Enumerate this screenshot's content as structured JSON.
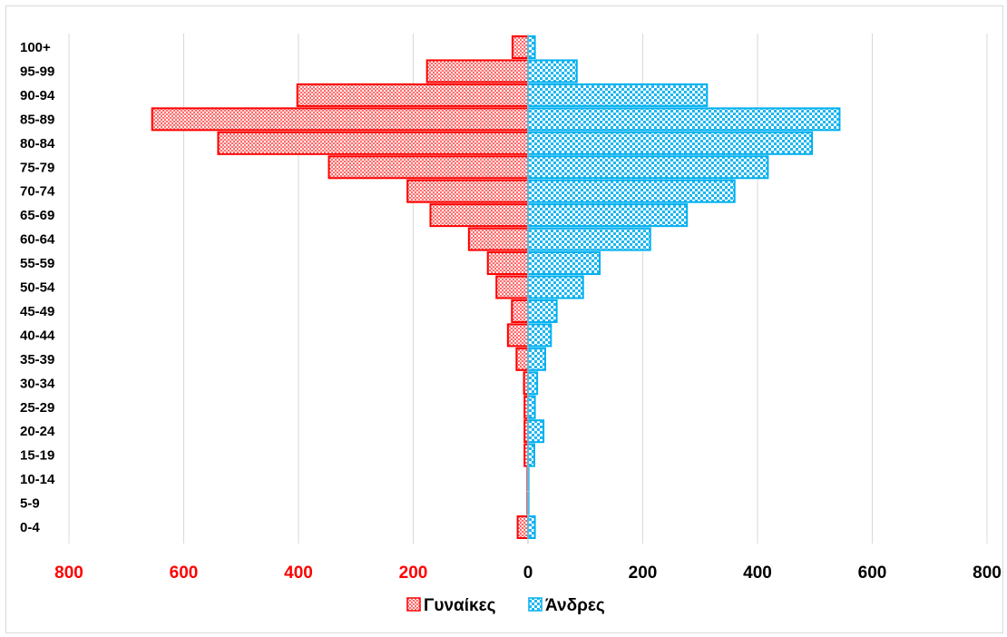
{
  "chart_data": {
    "type": "bar",
    "orientation": "horizontal",
    "layout": "population-pyramid",
    "categories": [
      "0-4",
      "5-9",
      "10-14",
      "15-19",
      "20-24",
      "25-29",
      "30-34",
      "35-39",
      "40-44",
      "45-49",
      "50-54",
      "55-59",
      "60-64",
      "65-69",
      "70-74",
      "75-79",
      "80-84",
      "85-89",
      "90-94",
      "95-99",
      "100+"
    ],
    "series": [
      {
        "name": "Γυναίκες",
        "side": "left",
        "color": "#ff0000",
        "values": [
          18,
          1,
          1,
          6,
          6,
          6,
          7,
          20,
          35,
          28,
          55,
          70,
          103,
          170,
          210,
          347,
          540,
          655,
          402,
          176,
          27
        ]
      },
      {
        "name": "Άνδρες",
        "side": "right",
        "color": "#00b0f0",
        "values": [
          12,
          1,
          1,
          11,
          27,
          12,
          16,
          30,
          40,
          50,
          96,
          125,
          213,
          277,
          360,
          418,
          495,
          543,
          312,
          85,
          12
        ]
      }
    ],
    "xlim": [
      -800,
      800
    ],
    "x_ticks": [
      {
        "value": -800,
        "label": "800",
        "color": "#ff0000"
      },
      {
        "value": -600,
        "label": "600",
        "color": "#ff0000"
      },
      {
        "value": -400,
        "label": "400",
        "color": "#ff0000"
      },
      {
        "value": -200,
        "label": "200",
        "color": "#ff0000"
      },
      {
        "value": 0,
        "label": "0",
        "color": "#000000"
      },
      {
        "value": 200,
        "label": "200",
        "color": "#000000"
      },
      {
        "value": 400,
        "label": "400",
        "color": "#000000"
      },
      {
        "value": 600,
        "label": "600",
        "color": "#000000"
      },
      {
        "value": 800,
        "label": "800",
        "color": "#000000"
      }
    ],
    "grid": "vertical",
    "legend_position": "bottom",
    "title": "",
    "xlabel": "",
    "ylabel": ""
  }
}
